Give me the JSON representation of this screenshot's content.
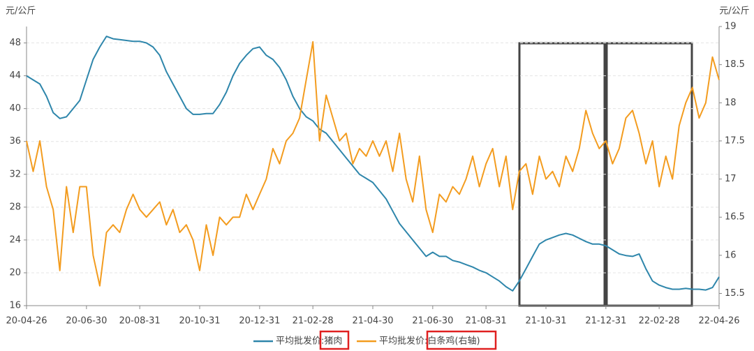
{
  "chart_data": {
    "type": "line",
    "y_label": "元/公斤",
    "y2_label": "元/公斤",
    "x": [
      "20-04-26",
      null,
      null,
      null,
      null,
      null,
      null,
      null,
      null,
      "20-06-30",
      null,
      null,
      null,
      null,
      null,
      null,
      null,
      "20-08-31",
      null,
      null,
      null,
      null,
      null,
      null,
      null,
      null,
      "20-10-31",
      null,
      null,
      null,
      null,
      null,
      null,
      null,
      null,
      "20-12-31",
      null,
      null,
      null,
      null,
      null,
      null,
      null,
      "21-02-28",
      null,
      null,
      null,
      null,
      null,
      null,
      null,
      null,
      "21-04-30",
      null,
      null,
      null,
      null,
      null,
      null,
      null,
      null,
      "21-06-30",
      null,
      null,
      null,
      null,
      null,
      null,
      null,
      "21-08-31",
      null,
      null,
      null,
      null,
      null,
      null,
      null,
      null,
      "21-10-31",
      null,
      null,
      null,
      null,
      null,
      null,
      null,
      null,
      "21-12-31",
      null,
      null,
      null,
      null,
      null,
      null,
      null,
      "22-02-28",
      null,
      null,
      null,
      null,
      null,
      null,
      null,
      null,
      "22-04-26"
    ],
    "series": [
      {
        "name": "平均批发价:猪肉",
        "color": "#2e86ab",
        "values": [
          44,
          43.5,
          43,
          41.5,
          39.5,
          38.8,
          39,
          40,
          41,
          43.5,
          46,
          47.5,
          48.8,
          48.5,
          48.4,
          48.3,
          48.2,
          48.2,
          48,
          47.5,
          46.5,
          44.5,
          43,
          41.5,
          40,
          39.3,
          39.3,
          39.4,
          39.4,
          40.5,
          42,
          44,
          45.5,
          46.5,
          47.3,
          47.5,
          46.5,
          46,
          45,
          43.5,
          41.5,
          40,
          39,
          38.5,
          37.5,
          37,
          36,
          35,
          34,
          33,
          32,
          31.5,
          31,
          30,
          29,
          27.5,
          26,
          25,
          24,
          23,
          22,
          22.5,
          22,
          22,
          21.5,
          21.3,
          21,
          20.7,
          20.3,
          20,
          19.5,
          19,
          18.3,
          17.8,
          19,
          20.5,
          22,
          23.5,
          24,
          24.3,
          24.6,
          24.8,
          24.6,
          24.2,
          23.8,
          23.5,
          23.5,
          23.3,
          22.8,
          22.3,
          22.1,
          22,
          22.3,
          20.5,
          19,
          18.5,
          18.2,
          18,
          18,
          18.1,
          18,
          18,
          17.9,
          18.2,
          19.5
        ]
      },
      {
        "name": "平均批发价:白条鸡(右轴)",
        "color": "#f39c1f",
        "axis": "y2",
        "values": [
          17.5,
          17.1,
          17.5,
          16.9,
          16.6,
          15.8,
          16.9,
          16.3,
          16.9,
          16.9,
          16.0,
          15.6,
          16.3,
          16.4,
          16.3,
          16.6,
          16.8,
          16.6,
          16.5,
          16.6,
          16.7,
          16.4,
          16.6,
          16.3,
          16.4,
          16.2,
          15.8,
          16.4,
          16.0,
          16.5,
          16.4,
          16.5,
          16.5,
          16.8,
          16.6,
          16.8,
          17.0,
          17.4,
          17.2,
          17.5,
          17.6,
          17.8,
          18.3,
          18.8,
          17.5,
          18.1,
          17.8,
          17.5,
          17.6,
          17.2,
          17.4,
          17.3,
          17.5,
          17.3,
          17.5,
          17.1,
          17.6,
          17.0,
          16.7,
          17.3,
          16.6,
          16.3,
          16.8,
          16.7,
          16.9,
          16.8,
          17.0,
          17.3,
          16.9,
          17.2,
          17.4,
          16.9,
          17.3,
          16.6,
          17.1,
          17.2,
          16.8,
          17.3,
          17.0,
          17.1,
          16.9,
          17.3,
          17.1,
          17.4,
          17.9,
          17.6,
          17.4,
          17.5,
          17.2,
          17.4,
          17.8,
          17.9,
          17.6,
          17.2,
          17.5,
          16.9,
          17.3,
          17.0,
          17.7,
          18.0,
          18.2,
          17.8,
          18.0,
          18.6,
          18.3
        ]
      }
    ],
    "ylim": [
      16,
      50
    ],
    "yticks": [
      16,
      20,
      24,
      28,
      32,
      36,
      40,
      44,
      48
    ],
    "y2lim": [
      15.34,
      19
    ],
    "y2ticks": [
      15.5,
      16,
      16.5,
      17,
      17.5,
      18,
      18.5,
      19
    ],
    "grid": true
  }
}
